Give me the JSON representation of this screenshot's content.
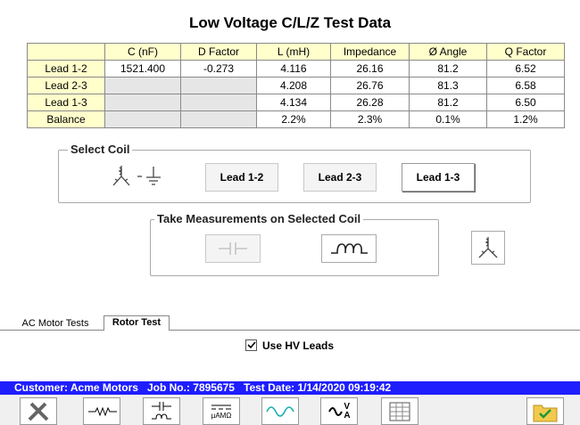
{
  "title": "Low Voltage C/L/Z Test Data",
  "table": {
    "header": [
      "C (nF)",
      "D Factor",
      "L (mH)",
      "Impedance",
      "Ø Angle",
      "Q Factor"
    ],
    "rows": [
      {
        "label": "Lead 1-2",
        "cells": [
          "1521.400",
          "-0.273",
          "4.116",
          "26.16",
          "81.2",
          "6.52"
        ]
      },
      {
        "label": "Lead 2-3",
        "cells": [
          null,
          null,
          "4.208",
          "26.76",
          "81.3",
          "6.58"
        ]
      },
      {
        "label": "Lead 1-3",
        "cells": [
          null,
          null,
          "4.134",
          "26.28",
          "81.2",
          "6.50"
        ]
      },
      {
        "label": "Balance",
        "cells": [
          null,
          null,
          "2.2%",
          "2.3%",
          "0.1%",
          "1.2%"
        ]
      }
    ]
  },
  "select_coil": {
    "title": "Select Coil",
    "buttons": [
      "Lead 1-2",
      "Lead 2-3",
      "Lead 1-3"
    ],
    "selected": 2
  },
  "measurements": {
    "title": "Take Measurements on Selected Coil"
  },
  "tabs": {
    "items": [
      "AC Motor Tests",
      "Rotor Test"
    ],
    "active": 1
  },
  "checkbox": {
    "label": "Use HV Leads",
    "checked": true
  },
  "status": {
    "customer": "Customer: Acme Motors",
    "job": "Job No.: 7895675",
    "date": "Test Date: 1/14/2020 09:19:42"
  },
  "toolbar": {
    "meter_label": "µAMΩ",
    "volt": "V",
    "amp": "A"
  }
}
